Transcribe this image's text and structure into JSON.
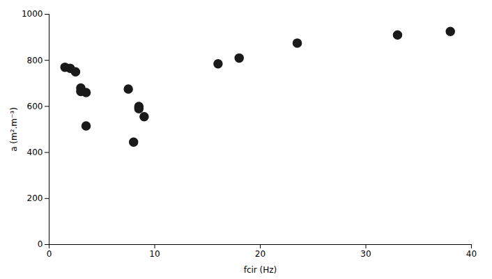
{
  "chart_data": {
    "type": "scatter",
    "x": [
      1.5,
      2.0,
      2.5,
      3.0,
      3.0,
      3.5,
      3.5,
      7.5,
      8.0,
      8.5,
      8.5,
      9.0,
      16.0,
      18.0,
      23.5,
      33.0,
      38.0
    ],
    "y": [
      770,
      765,
      750,
      680,
      665,
      660,
      515,
      675,
      445,
      600,
      590,
      555,
      785,
      810,
      875,
      910,
      925
    ],
    "color": "#1a1a1a",
    "marker": "circle",
    "xlabel": "fcir (Hz)",
    "ylabel": "a (m².m⁻³)",
    "xlim": [
      0,
      40
    ],
    "ylim": [
      0,
      1000
    ],
    "xticks": [
      0,
      10,
      20,
      30,
      40
    ],
    "yticks": [
      0,
      200,
      400,
      600,
      800,
      1000
    ],
    "grid": false
  }
}
